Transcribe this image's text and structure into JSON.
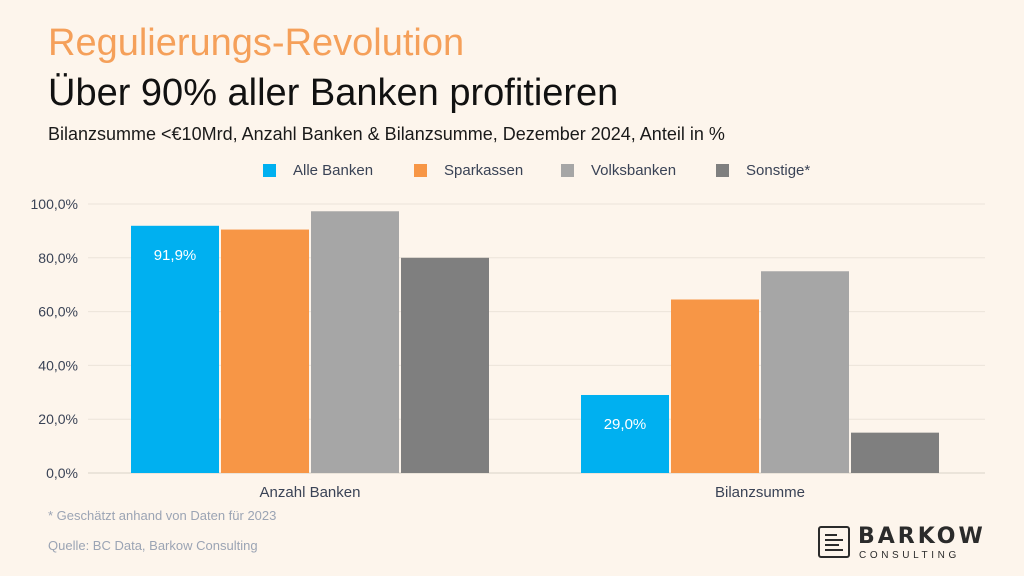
{
  "header": {
    "headline": "Regulierungs-Revolution",
    "title": "Über 90% aller Banken profitieren",
    "subtitle": "Bilanzsumme <€10Mrd, Anzahl Banken & Bilanzsumme, Dezember 2024, Anteil in %"
  },
  "chart_data": {
    "type": "bar",
    "title": "",
    "xlabel": "",
    "ylabel": "",
    "categories": [
      "Anzahl Banken",
      "Bilanzsumme"
    ],
    "ylim": [
      0,
      100
    ],
    "yticks": [
      "0,0%",
      "20,0%",
      "40,0%",
      "60,0%",
      "80,0%",
      "100,0%"
    ],
    "grid": true,
    "legend_position": "top-center",
    "series": [
      {
        "name": "Alle Banken",
        "color": "#00b0f0",
        "values": [
          91.9,
          29.0
        ],
        "labels": [
          "91,9%",
          "29,0%"
        ]
      },
      {
        "name": "Sparkassen",
        "color": "#f79646",
        "values": [
          90.5,
          64.5
        ],
        "labels": [
          "",
          ""
        ]
      },
      {
        "name": "Volksbanken",
        "color": "#a6a6a6",
        "values": [
          97.3,
          75.0
        ],
        "labels": [
          "",
          ""
        ]
      },
      {
        "name": "Sonstige*",
        "color": "#7f7f7f",
        "values": [
          80.0,
          15.0
        ],
        "labels": [
          "",
          ""
        ]
      }
    ]
  },
  "footer": {
    "footnote": "* Geschätzt anhand von Daten für 2023",
    "source": "Quelle: BC Data, Barkow Consulting"
  },
  "logo": {
    "name": "BARKOW",
    "sub": "CONSULTING"
  }
}
